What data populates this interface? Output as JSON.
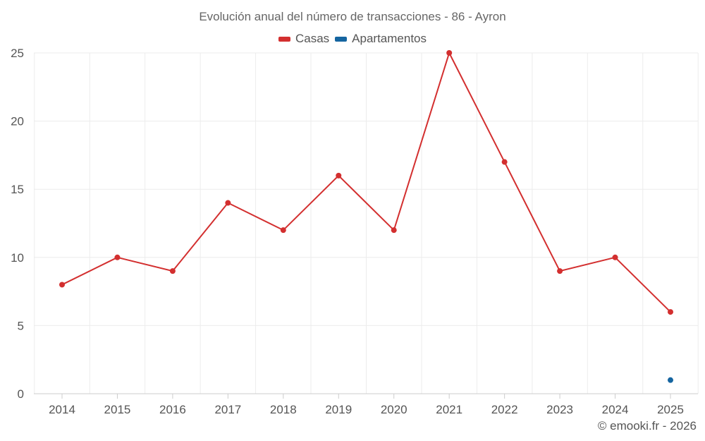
{
  "chart_data": {
    "type": "line",
    "title": "Evolución anual del número de transacciones - 86 - Ayron",
    "xlabel": "",
    "ylabel": "",
    "categories": [
      "2014",
      "2015",
      "2016",
      "2017",
      "2018",
      "2019",
      "2020",
      "2021",
      "2022",
      "2023",
      "2024",
      "2025"
    ],
    "ylim": [
      0,
      25
    ],
    "yticks": [
      0,
      5,
      10,
      15,
      20,
      25
    ],
    "grid": true,
    "legend_position": "top-center",
    "series": [
      {
        "name": "Casas",
        "color": "#d32f2f",
        "values": [
          8,
          10,
          9,
          14,
          12,
          16,
          12,
          25,
          17,
          9,
          10,
          6
        ]
      },
      {
        "name": "Apartamentos",
        "color": "#1565a0",
        "values": [
          null,
          null,
          null,
          null,
          null,
          null,
          null,
          null,
          null,
          null,
          null,
          1
        ]
      }
    ]
  },
  "credit": "© emooki.fr - 2026"
}
